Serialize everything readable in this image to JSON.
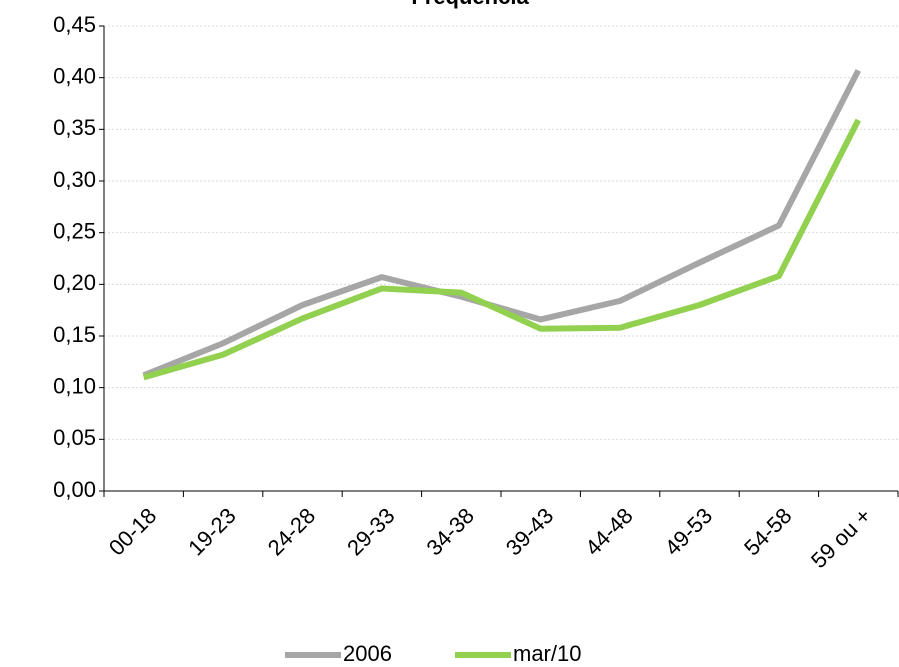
{
  "chart_data": {
    "type": "line",
    "title": "Frequência",
    "categories": [
      "00-18",
      "19-23",
      "24-28",
      "29-33",
      "34-38",
      "39-43",
      "44-48",
      "49-53",
      "54-58",
      "59 ou +"
    ],
    "series": [
      {
        "name": "2006",
        "color": "#a6a6a6",
        "values": [
          0.112,
          0.143,
          0.18,
          0.207,
          0.188,
          0.166,
          0.184,
          0.221,
          0.257,
          0.407
        ]
      },
      {
        "name": "mar/10",
        "color": "#92d050",
        "values": [
          0.11,
          0.132,
          0.167,
          0.196,
          0.192,
          0.157,
          0.158,
          0.18,
          0.208,
          0.359
        ]
      }
    ],
    "ylim": [
      0,
      0.45
    ],
    "yticks": [
      {
        "value": 0,
        "label": "0,00"
      },
      {
        "value": 0.05,
        "label": "0,05"
      },
      {
        "value": 0.1,
        "label": "0,10"
      },
      {
        "value": 0.15,
        "label": "0,15"
      },
      {
        "value": 0.2,
        "label": "0,20"
      },
      {
        "value": 0.25,
        "label": "0,25"
      },
      {
        "value": 0.3,
        "label": "0,30"
      },
      {
        "value": 0.35,
        "label": "0,35"
      },
      {
        "value": 0.4,
        "label": "0,40"
      },
      {
        "value": 0.45,
        "label": "0,45"
      }
    ],
    "grid": true,
    "legend": "bottom"
  }
}
